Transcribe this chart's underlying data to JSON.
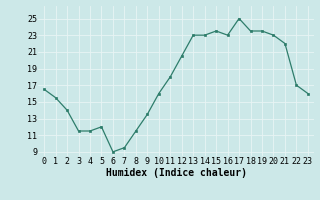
{
  "x": [
    0,
    1,
    2,
    3,
    4,
    5,
    6,
    7,
    8,
    9,
    10,
    11,
    12,
    13,
    14,
    15,
    16,
    17,
    18,
    19,
    20,
    21,
    22,
    23
  ],
  "y": [
    16.5,
    15.5,
    14.0,
    11.5,
    11.5,
    12.0,
    9.0,
    9.5,
    11.5,
    13.5,
    16.0,
    18.0,
    20.5,
    23.0,
    23.0,
    23.5,
    23.0,
    25.0,
    23.5,
    23.5,
    23.0,
    22.0,
    17.0,
    16.0
  ],
  "xlabel": "Humidex (Indice chaleur)",
  "xlim": [
    -0.5,
    23.5
  ],
  "ylim": [
    8.5,
    26.5
  ],
  "yticks": [
    9,
    11,
    13,
    15,
    17,
    19,
    21,
    23,
    25
  ],
  "xticks": [
    0,
    1,
    2,
    3,
    4,
    5,
    6,
    7,
    8,
    9,
    10,
    11,
    12,
    13,
    14,
    15,
    16,
    17,
    18,
    19,
    20,
    21,
    22,
    23
  ],
  "line_color": "#2e7d6b",
  "marker_color": "#2e7d6b",
  "bg_color": "#cce8e8",
  "grid_color": "#e8f4f4",
  "xlabel_fontsize": 7,
  "tick_fontsize": 6
}
